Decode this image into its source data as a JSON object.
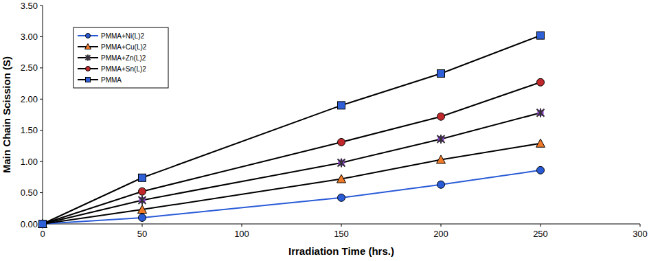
{
  "chart_data": {
    "type": "line",
    "x_label": "Irradiation Time (hrs.)",
    "y_label": "Main Chain Scission (S)",
    "x": [
      0,
      50,
      150,
      200,
      250
    ],
    "xlim": [
      0,
      300
    ],
    "xticks": [
      0,
      50,
      100,
      150,
      200,
      250,
      300
    ],
    "ylim": [
      0,
      3.5
    ],
    "yticks": [
      {
        "value": 0,
        "label": "0.00"
      },
      {
        "value": 0.5,
        "label": "0.50"
      },
      {
        "value": 1,
        "label": "1.00"
      },
      {
        "value": 1.5,
        "label": "1.50"
      },
      {
        "value": 2,
        "label": "2.00"
      },
      {
        "value": 2.5,
        "label": "2.50"
      },
      {
        "value": 3,
        "label": "3.00"
      },
      {
        "value": 3.5,
        "label": "3.50"
      }
    ],
    "grid": false,
    "legend": "upper left",
    "series": [
      {
        "name": "PMMA+Ni(L)2",
        "color": "#2a5bd7",
        "marker": "circle",
        "values": [
          0,
          0.1,
          0.42,
          0.63,
          0.86
        ]
      },
      {
        "name": "PMMA+Cu(L)2",
        "color": "#f07a28",
        "marker": "triangle",
        "values": [
          0,
          0.23,
          0.72,
          1.03,
          1.29
        ]
      },
      {
        "name": "PMMA+Zn(L)2",
        "color": "#8e3fd0",
        "marker": "star",
        "values": [
          0,
          0.38,
          0.98,
          1.36,
          1.78
        ]
      },
      {
        "name": "PMMA+Sn(L)2",
        "color": "#c0282c",
        "marker": "circle",
        "values": [
          0,
          0.52,
          1.31,
          1.72,
          2.27
        ]
      },
      {
        "name": "PMMA",
        "color": "#2f5fd6",
        "marker": "square",
        "values": [
          0,
          0.74,
          1.9,
          2.41,
          3.02
        ]
      }
    ]
  }
}
